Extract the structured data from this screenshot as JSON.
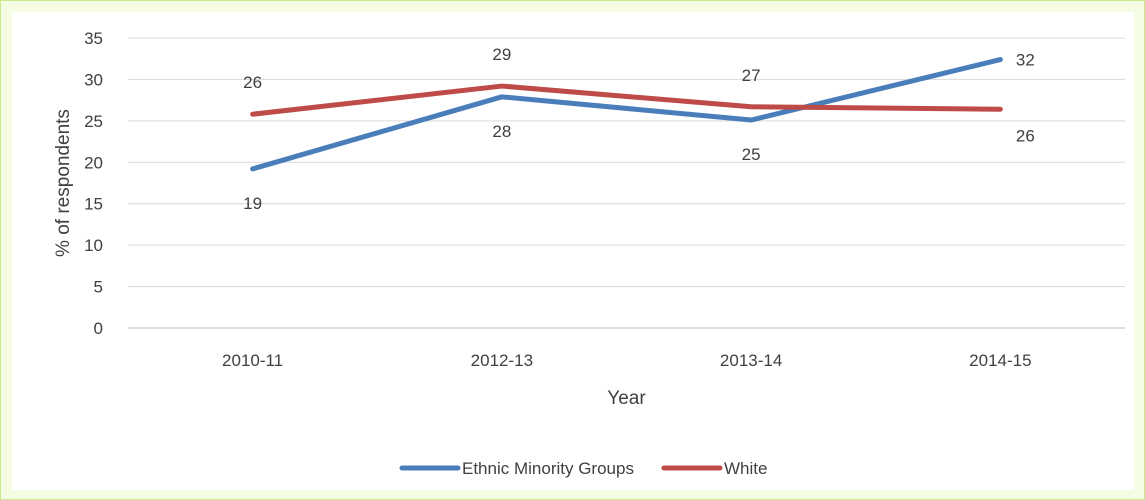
{
  "chart_data": {
    "type": "line",
    "title": "",
    "xlabel": "Year",
    "ylabel": "% of respondents",
    "categories": [
      "2010-11",
      "2012-13",
      "2013-14",
      "2014-15"
    ],
    "ylim": [
      0,
      35
    ],
    "yticks": [
      0,
      5,
      10,
      15,
      20,
      25,
      30,
      35
    ],
    "grid": true,
    "legend_position": "bottom",
    "series": [
      {
        "name": "Ethnic Minority Groups",
        "color": "#4a7ebb",
        "values": [
          19.2,
          27.9,
          25.1,
          32.4
        ],
        "labels": [
          "19",
          "28",
          "25",
          "32"
        ],
        "label_side": [
          "below",
          "below",
          "below",
          "right"
        ]
      },
      {
        "name": "White",
        "color": "#be4b48",
        "values": [
          25.8,
          29.2,
          26.7,
          26.4
        ],
        "labels": [
          "26",
          "29",
          "27",
          "26"
        ],
        "label_side": [
          "above",
          "above",
          "above",
          "below-right"
        ]
      }
    ]
  }
}
